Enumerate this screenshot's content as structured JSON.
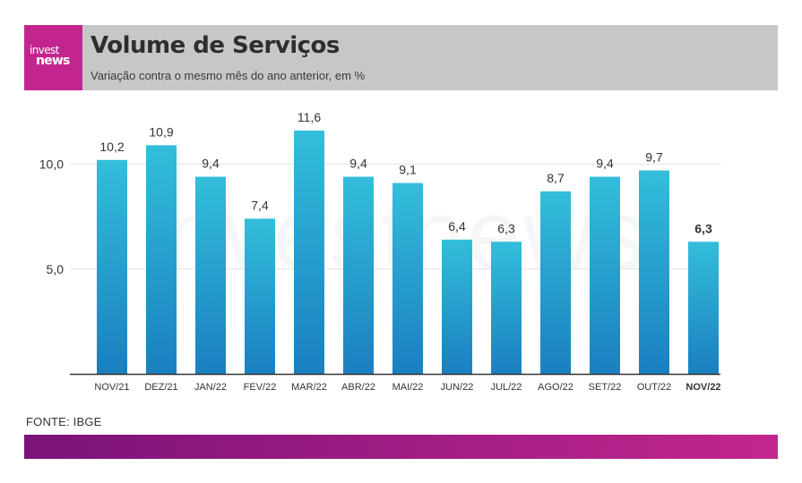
{
  "header": {
    "logo_top": "invest",
    "logo_bottom": "news",
    "title": "Volume de Serviços",
    "subtitle": "Variação contra o mesmo mês do ano anterior, em %"
  },
  "watermark": "investnews",
  "source": "FONTE: IBGE",
  "colors": {
    "header_bg": "#c7c7c7",
    "logo_bg": "#c2268e",
    "bar_top": "#33bedb",
    "bar_bottom": "#1a7fc0",
    "footer_start": "#7a1378",
    "footer_end": "#c2268e"
  },
  "chart_data": {
    "type": "bar",
    "categories": [
      "NOV/21",
      "DEZ/21",
      "JAN/22",
      "FEV/22",
      "MAR/22",
      "ABR/22",
      "MAI/22",
      "JUN/22",
      "JUL/22",
      "AGO/22",
      "SET/22",
      "OUT/22",
      "NOV/22"
    ],
    "values": [
      10.2,
      10.9,
      9.4,
      7.4,
      11.6,
      9.4,
      9.1,
      6.4,
      6.3,
      8.7,
      9.4,
      9.7,
      6.3
    ],
    "value_labels": [
      "10,2",
      "10,9",
      "9,4",
      "7,4",
      "11,6",
      "9,4",
      "9,1",
      "6,4",
      "6,3",
      "8,7",
      "9,4",
      "9,7",
      "6,3"
    ],
    "highlight_index": 12,
    "yticks": [
      5.0,
      10.0
    ],
    "ytick_labels": [
      "5,0",
      "10,0"
    ],
    "ylim": [
      0,
      11.6
    ],
    "grid": true,
    "legend": "none"
  }
}
